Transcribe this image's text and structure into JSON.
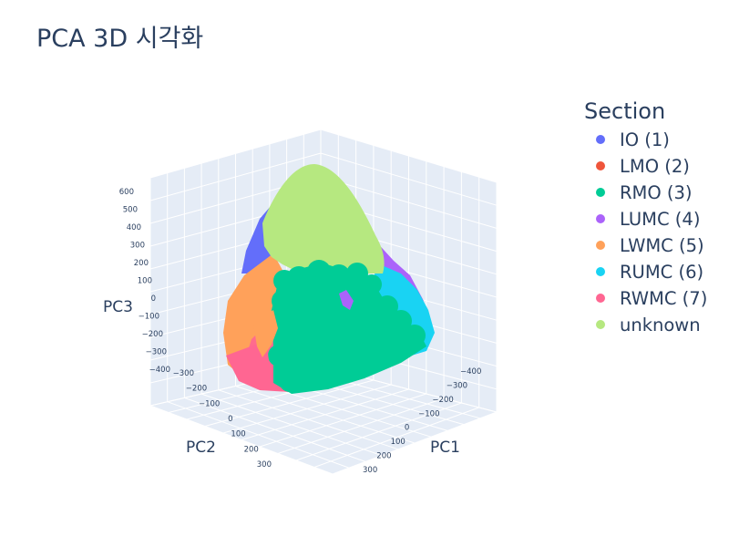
{
  "chart_data": {
    "type": "scatter3d",
    "title": "PCA 3D 시각화",
    "axes": {
      "x": {
        "label": "PC1",
        "ticks": [
          "−400",
          "−300",
          "−200",
          "−100",
          "0",
          "100",
          "200",
          "300"
        ]
      },
      "y": {
        "label": "PC2",
        "ticks": [
          "−300",
          "−200",
          "−100",
          "0",
          "100",
          "200",
          "300"
        ]
      },
      "z": {
        "label": "PC3",
        "ticks": [
          "600",
          "500",
          "400",
          "300",
          "200",
          "100",
          "0",
          "−100",
          "−200",
          "−300",
          "−400"
        ]
      }
    },
    "legend": {
      "title": "Section",
      "placement": "right"
    },
    "series": [
      {
        "name": "IO (1)",
        "color": "#636efa"
      },
      {
        "name": "LMO (2)",
        "color": "#EF553B"
      },
      {
        "name": "RMO (3)",
        "color": "#00cc96"
      },
      {
        "name": "LUMC (4)",
        "color": "#ab63fa"
      },
      {
        "name": "LWMC (5)",
        "color": "#FFA15A"
      },
      {
        "name": "RUMC (6)",
        "color": "#19d3f3"
      },
      {
        "name": "RWMC (7)",
        "color": "#FF6692"
      },
      {
        "name": "unknown",
        "color": "#B6E880"
      }
    ],
    "grid": true,
    "background": "#e5ecf6"
  }
}
